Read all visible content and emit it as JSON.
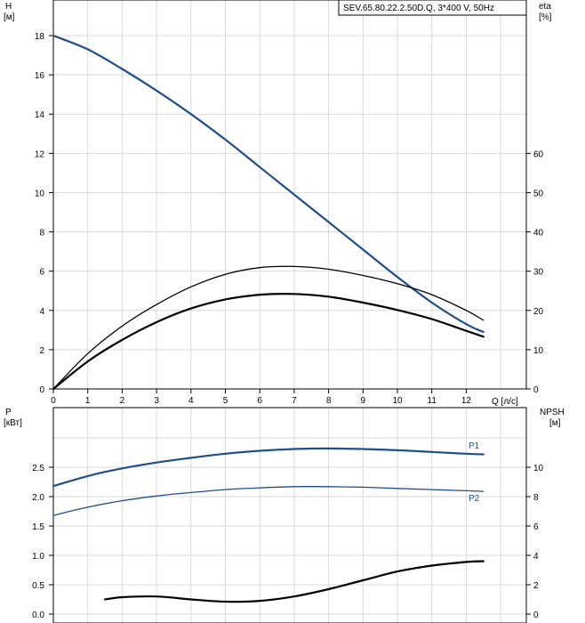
{
  "model_label": "SEV.65.80.22.2.50D.Q, 3*400 V, 50Hz",
  "colors": {
    "blue": "#1f4e8c",
    "black": "#000000",
    "grid": "#d9d9d9"
  },
  "chart_data": [
    {
      "type": "line",
      "panel": "top",
      "xlabel": "Q [л/с]",
      "xticks": [
        0,
        1,
        2,
        3,
        4,
        5,
        6,
        7,
        8,
        9,
        10,
        11,
        12
      ],
      "xlim": [
        0,
        13
      ],
      "ylabel_left": "H",
      "ylabel_left_unit": "[м]",
      "ylim_left": [
        0,
        20
      ],
      "yticks_left": [
        0,
        2,
        4,
        6,
        8,
        10,
        12,
        14,
        16,
        18
      ],
      "ylabel_right": "eta",
      "ylabel_right_unit": "[%]",
      "ylim_right": [
        0,
        100
      ],
      "yticks_right": [
        0,
        10,
        20,
        30,
        40,
        50,
        60
      ],
      "grid": true,
      "series": [
        {
          "axis": "left",
          "color": "blue",
          "width": 2.2,
          "x": [
            0,
            1,
            2,
            3,
            4,
            5,
            6,
            7,
            8,
            9,
            10,
            11,
            12,
            12.5
          ],
          "y": [
            18.0,
            17.3,
            16.3,
            15.2,
            14.0,
            12.7,
            11.3,
            9.9,
            8.5,
            7.1,
            5.7,
            4.4,
            3.3,
            2.9
          ]
        },
        {
          "axis": "right",
          "color": "black",
          "width": 1.3,
          "x": [
            0,
            1,
            2,
            3,
            4,
            5,
            6,
            7,
            8,
            9,
            10,
            11,
            12,
            12.5
          ],
          "y": [
            0,
            9,
            16,
            21.5,
            26,
            29.2,
            30.9,
            31.2,
            30.5,
            28.9,
            26.8,
            24.0,
            20.0,
            17.5
          ]
        },
        {
          "axis": "right",
          "color": "black",
          "width": 2.2,
          "x": [
            0,
            1,
            2,
            3,
            4,
            5,
            6,
            7,
            8,
            9,
            10,
            11,
            12,
            12.5
          ],
          "y": [
            0,
            7,
            12.5,
            17,
            20.5,
            22.8,
            24,
            24.2,
            23.5,
            22,
            20.1,
            17.8,
            14.8,
            13.3
          ]
        }
      ]
    },
    {
      "type": "line",
      "panel": "bottom",
      "xlim": [
        0,
        13
      ],
      "ylabel_left": "P",
      "ylabel_left_unit": "[кВт]",
      "ylim_left": [
        0,
        3.0
      ],
      "yticks_left": [
        "0.0",
        "0.5",
        "1.0",
        "1.5",
        "2.0",
        "2.5"
      ],
      "ylabel_right": "NPSH",
      "ylabel_right_unit": "[м]",
      "ylim_right": [
        0,
        12
      ],
      "yticks_right": [
        0,
        2,
        4,
        6,
        8,
        10
      ],
      "grid": true,
      "series": [
        {
          "name": "P1",
          "axis": "left",
          "color": "blue",
          "width": 2.2,
          "x": [
            0,
            1,
            2,
            3,
            4,
            5,
            6,
            7,
            8,
            9,
            10,
            11,
            12,
            12.5
          ],
          "y": [
            2.18,
            2.35,
            2.48,
            2.58,
            2.66,
            2.73,
            2.78,
            2.81,
            2.82,
            2.81,
            2.79,
            2.76,
            2.73,
            2.72
          ]
        },
        {
          "name": "P2",
          "axis": "left",
          "color": "blue",
          "width": 1.3,
          "x": [
            0,
            1,
            2,
            3,
            4,
            5,
            6,
            7,
            8,
            9,
            10,
            11,
            12,
            12.5
          ],
          "y": [
            1.68,
            1.82,
            1.93,
            2.01,
            2.07,
            2.12,
            2.15,
            2.17,
            2.17,
            2.16,
            2.14,
            2.12,
            2.1,
            2.09
          ]
        },
        {
          "axis": "right",
          "color": "black",
          "width": 2.2,
          "x": [
            1.5,
            2,
            3,
            4,
            5,
            6,
            7,
            8,
            9,
            10,
            11,
            12,
            12.5
          ],
          "y": [
            1.0,
            1.15,
            1.2,
            1.0,
            0.85,
            0.9,
            1.2,
            1.7,
            2.3,
            2.9,
            3.3,
            3.55,
            3.6
          ]
        }
      ]
    }
  ]
}
